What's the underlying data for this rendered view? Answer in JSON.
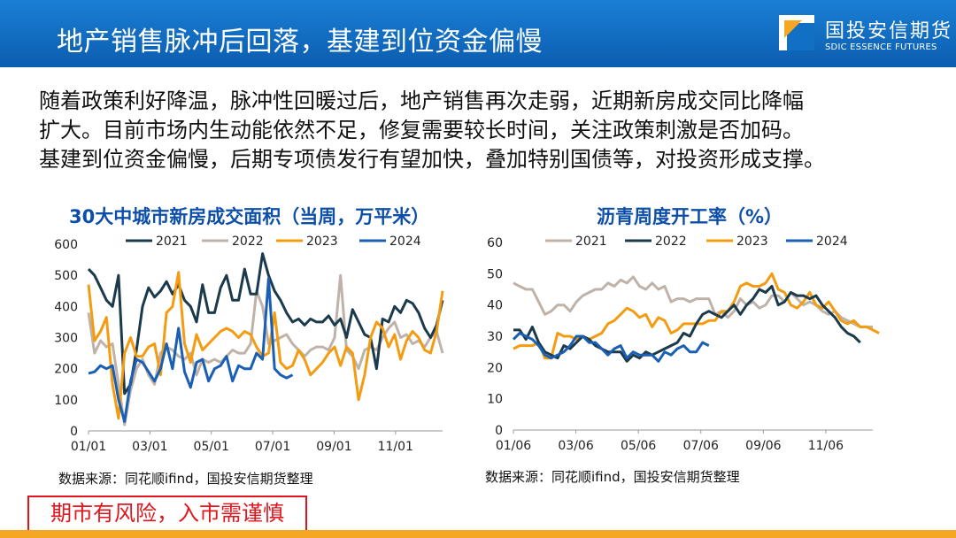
{
  "header": {
    "title": "地产销售脉冲后回落，基建到位资金偏慢"
  },
  "logo": {
    "name_cn": "国投安信期货",
    "name_en": "SDIC ESSENCE FUTURES"
  },
  "paragraph": [
    "随着政策利好降温，脉冲性回暖过后，地产销售再次走弱，近期新房成交同比降幅",
    "扩大。目前市场内生动能依然不足，修复需要较长时间，关注政策刺激是否加码。",
    "基建到位资金偏慢，后期专项债发行有望加快，叠加特别国债等，对投资形成支撑。"
  ],
  "risk_notice": "期市有风险，入市需谨慎",
  "colors": {
    "header": "#1170c4",
    "title_blue": "#0d4fa8",
    "risk_red": "#e0161c",
    "footer": "#f5a623"
  },
  "chart_data": [
    {
      "type": "line",
      "title": "30大中城市新房成交面积（当周，万平米）",
      "source": "数据来源：同花顺ifind，国投安信期货整理",
      "ylim": [
        0,
        600
      ],
      "yticks": [
        "0",
        "100",
        "200",
        "300",
        "400",
        "500",
        "600"
      ],
      "xticks": [
        "01/01",
        "03/01",
        "05/01",
        "07/01",
        "09/01",
        "11/01"
      ],
      "legend": "top",
      "series": [
        {
          "name": "2021",
          "color": "#1b3a4b",
          "values": [
            520,
            500,
            460,
            420,
            400,
            500,
            120,
            150,
            260,
            400,
            460,
            430,
            450,
            480,
            440,
            470,
            420,
            400,
            350,
            470,
            380,
            380,
            460,
            500,
            420,
            420,
            520,
            440,
            440,
            570,
            500,
            450,
            420,
            380,
            350,
            360,
            340,
            360,
            350,
            350,
            370,
            340,
            360,
            300,
            390,
            350,
            310,
            300,
            200,
            360,
            350,
            400,
            380,
            420,
            410,
            380,
            330,
            300,
            340,
            420
          ]
        },
        {
          "name": "2022",
          "color": "#bfb3a9",
          "values": [
            380,
            250,
            290,
            270,
            280,
            150,
            20,
            130,
            200,
            230,
            180,
            150,
            250,
            270,
            260,
            240,
            230,
            250,
            180,
            230,
            220,
            230,
            220,
            240,
            260,
            250,
            250,
            280,
            450,
            400,
            280,
            290,
            300,
            310,
            280,
            260,
            240,
            260,
            270,
            270,
            260,
            300,
            500,
            260,
            240,
            200,
            260,
            270,
            260,
            300,
            330,
            350,
            300,
            310,
            280,
            290,
            270,
            300,
            320,
            250
          ]
        },
        {
          "name": "2023",
          "color": "#f39c12",
          "values": [
            470,
            290,
            320,
            365,
            150,
            40,
            250,
            300,
            240,
            240,
            270,
            280,
            180,
            380,
            400,
            510,
            280,
            220,
            310,
            260,
            280,
            300,
            320,
            330,
            320,
            300,
            320,
            310,
            270,
            240,
            250,
            380,
            220,
            200,
            210,
            260,
            230,
            180,
            200,
            220,
            250,
            270,
            210,
            270,
            250,
            100,
            180,
            300,
            350,
            330,
            270,
            310,
            230,
            290,
            320,
            300,
            260,
            250,
            320,
            450
          ]
        },
        {
          "name": "2024",
          "color": "#1a5fb4",
          "values": [
            185,
            190,
            210,
            200,
            210,
            100,
            30,
            160,
            230,
            220,
            190,
            160,
            200,
            280,
            200,
            330,
            190,
            140,
            220,
            230,
            160,
            200,
            210,
            240,
            160,
            210,
            200,
            200,
            250,
            230,
            490,
            200,
            180,
            170,
            180
          ]
        }
      ]
    },
    {
      "type": "line",
      "title": "沥青周度开工率（%）",
      "source": "数据来源：同花顺ifind，国投安信期货整理",
      "ylim": [
        0,
        60
      ],
      "yticks": [
        "0",
        "10",
        "20",
        "30",
        "40",
        "50",
        "60"
      ],
      "xticks": [
        "01/06",
        "03/06",
        "05/06",
        "07/06",
        "09/06",
        "11/06"
      ],
      "legend": "top",
      "series": [
        {
          "name": "2021",
          "color": "#bfb3a9",
          "values": [
            47,
            46,
            45,
            45,
            41,
            37,
            38,
            40,
            40,
            38,
            41,
            43,
            44,
            45,
            45,
            47,
            46,
            48,
            47,
            49,
            46,
            45,
            47,
            45,
            46,
            41,
            42,
            42,
            41,
            42,
            42,
            42,
            37,
            38,
            36,
            38,
            42,
            40,
            41,
            39,
            40,
            43,
            43,
            41,
            44,
            42,
            40,
            41,
            40,
            38,
            37,
            38,
            36,
            35,
            34,
            33,
            33,
            33
          ]
        },
        {
          "name": "2022",
          "color": "#1b3a4b",
          "values": [
            32,
            32,
            29,
            33,
            28,
            25,
            24,
            23,
            27,
            26,
            28,
            30,
            29,
            27,
            26,
            25,
            25,
            25,
            22,
            24,
            23,
            25,
            24,
            25,
            26,
            27,
            28,
            31,
            30,
            34,
            37,
            38,
            37,
            36,
            38,
            40,
            37,
            40,
            42,
            45,
            44,
            46,
            40,
            41,
            44,
            43,
            43,
            42,
            43,
            40,
            38,
            36,
            33,
            31,
            30,
            28
          ]
        },
        {
          "name": "2023",
          "color": "#f39c12",
          "values": [
            26,
            27,
            27,
            27,
            28,
            23,
            23,
            31,
            30,
            30,
            29,
            30,
            29,
            30,
            31,
            34,
            35,
            37,
            39,
            38,
            36,
            37,
            33,
            36,
            35,
            31,
            32,
            34,
            34,
            34,
            34,
            35,
            35,
            38,
            38,
            41,
            46,
            47,
            46,
            46,
            47,
            50,
            45,
            44,
            40,
            39,
            41,
            44,
            40,
            39,
            41,
            38,
            35,
            34,
            35,
            33,
            33,
            32,
            31
          ]
        },
        {
          "name": "2024",
          "color": "#1a5fb4",
          "values": [
            29,
            31,
            30,
            29,
            27,
            24,
            23,
            24,
            25,
            27,
            30,
            30,
            28,
            28,
            26,
            24,
            26,
            27,
            23,
            25,
            24,
            24,
            24,
            22,
            25,
            24,
            26,
            27,
            25,
            25,
            28,
            27
          ]
        }
      ]
    }
  ]
}
